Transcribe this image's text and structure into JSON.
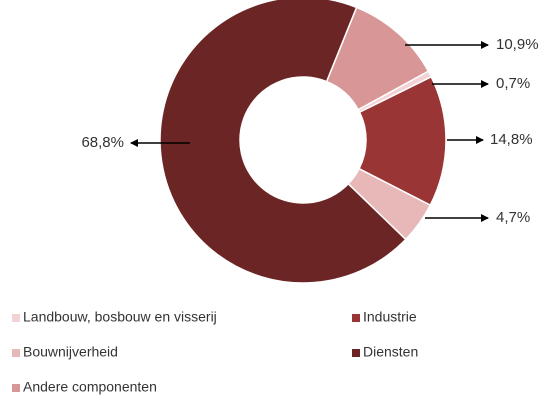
{
  "chart_data": {
    "type": "donut",
    "categories": [
      "Landbouw, bosbouw en visserij",
      "Industrie",
      "Bouwnijverheid",
      "Diensten",
      "Andere componenten"
    ],
    "values": [
      0.7,
      14.8,
      4.7,
      68.8,
      10.9
    ],
    "value_labels": [
      "0,7%",
      "14,8%",
      "4,7%",
      "68,8%",
      "10,9%"
    ],
    "colors": [
      "#f2d2d2",
      "#993535",
      "#e8b8b8",
      "#6b2525",
      "#d99696"
    ]
  }
}
